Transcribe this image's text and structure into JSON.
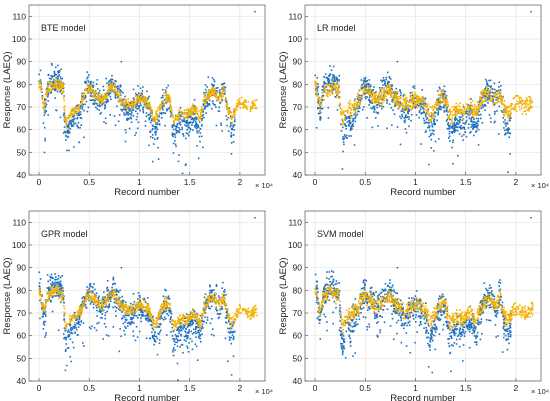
{
  "chart_data": [
    {
      "type": "scatter",
      "annotation": "BTE model",
      "xlabel": "Record number",
      "ylabel": "Response (LAEQ)",
      "x_exponent_label": "× 10⁴",
      "xlim": [
        -0.1,
        2.25
      ],
      "ylim": [
        40,
        115
      ],
      "xticks": [
        0,
        0.5,
        1,
        1.5,
        2
      ],
      "xtick_labels": [
        "0",
        "0.5",
        "1",
        "1.5",
        "2"
      ],
      "yticks": [
        40,
        50,
        60,
        70,
        80,
        90,
        100,
        110
      ],
      "ytick_labels": [
        "40",
        "50",
        "60",
        "70",
        "80",
        "90",
        "100",
        "110"
      ],
      "grid": true,
      "colors": {
        "true": "#1f6fc0",
        "predicted": "#f5b100"
      },
      "spread_scale": 0.55,
      "series": [
        {
          "points": [
            [
              0.0,
              82
            ],
            [
              0.02,
              80
            ],
            [
              0.05,
              66
            ],
            [
              0.08,
              78
            ],
            [
              0.12,
              81
            ],
            [
              0.16,
              82
            ],
            [
              0.2,
              81
            ],
            [
              0.24,
              80
            ],
            [
              0.26,
              60
            ],
            [
              0.28,
              57
            ],
            [
              0.3,
              62
            ],
            [
              0.34,
              64
            ],
            [
              0.38,
              66
            ],
            [
              0.42,
              70
            ],
            [
              0.45,
              74
            ],
            [
              0.48,
              80
            ],
            [
              0.52,
              78
            ],
            [
              0.55,
              76
            ],
            [
              0.58,
              74
            ],
            [
              0.62,
              72
            ],
            [
              0.66,
              74
            ],
            [
              0.7,
              79
            ],
            [
              0.74,
              80
            ],
            [
              0.78,
              76
            ],
            [
              0.82,
              72
            ],
            [
              0.86,
              70
            ],
            [
              0.9,
              68
            ],
            [
              0.95,
              71
            ],
            [
              1.0,
              73
            ],
            [
              1.05,
              72
            ],
            [
              1.1,
              68
            ],
            [
              1.15,
              59
            ],
            [
              1.18,
              63
            ],
            [
              1.22,
              70
            ],
            [
              1.26,
              74
            ],
            [
              1.3,
              73
            ],
            [
              1.34,
              58
            ],
            [
              1.38,
              61
            ],
            [
              1.42,
              64
            ],
            [
              1.46,
              62
            ],
            [
              1.5,
              64
            ],
            [
              1.55,
              67
            ],
            [
              1.6,
              60
            ],
            [
              1.64,
              70
            ],
            [
              1.68,
              75
            ],
            [
              1.72,
              78
            ],
            [
              1.76,
              76
            ],
            [
              1.8,
              72
            ],
            [
              1.84,
              78
            ],
            [
              1.88,
              66
            ],
            [
              1.92,
              60
            ],
            [
              1.96,
              66
            ],
            [
              2.0,
              70
            ],
            [
              2.05,
              69
            ],
            [
              2.1,
              67
            ],
            [
              2.15,
              69
            ]
          ]
        }
      ],
      "outliers": [
        [
          2.15,
          112
        ],
        [
          0.82,
          90
        ]
      ]
    },
    {
      "type": "scatter",
      "annotation": "LR model",
      "xlabel": "Record number",
      "ylabel": "Response (LAEQ)",
      "x_exponent_label": "× 10⁴",
      "xlim": [
        -0.1,
        2.25
      ],
      "ylim": [
        40,
        115
      ],
      "xticks": [
        0,
        0.5,
        1,
        1.5,
        2
      ],
      "xtick_labels": [
        "0",
        "0.5",
        "1",
        "1.5",
        "2"
      ],
      "yticks": [
        40,
        50,
        60,
        70,
        80,
        90,
        100,
        110
      ],
      "ytick_labels": [
        "40",
        "50",
        "60",
        "70",
        "80",
        "90",
        "100",
        "110"
      ],
      "grid": true,
      "colors": {
        "true": "#1f6fc0",
        "predicted": "#f5b100"
      },
      "spread_scale": 0.85,
      "series": [
        {
          "points": [
            [
              0.0,
              82
            ],
            [
              0.02,
              80
            ],
            [
              0.05,
              66
            ],
            [
              0.08,
              78
            ],
            [
              0.12,
              81
            ],
            [
              0.16,
              82
            ],
            [
              0.2,
              81
            ],
            [
              0.24,
              80
            ],
            [
              0.26,
              60
            ],
            [
              0.28,
              57
            ],
            [
              0.3,
              62
            ],
            [
              0.34,
              64
            ],
            [
              0.38,
              66
            ],
            [
              0.42,
              70
            ],
            [
              0.45,
              74
            ],
            [
              0.48,
              80
            ],
            [
              0.52,
              78
            ],
            [
              0.55,
              76
            ],
            [
              0.58,
              74
            ],
            [
              0.62,
              72
            ],
            [
              0.66,
              74
            ],
            [
              0.7,
              79
            ],
            [
              0.74,
              80
            ],
            [
              0.78,
              76
            ],
            [
              0.82,
              72
            ],
            [
              0.86,
              70
            ],
            [
              0.9,
              68
            ],
            [
              0.95,
              71
            ],
            [
              1.0,
              73
            ],
            [
              1.05,
              72
            ],
            [
              1.1,
              68
            ],
            [
              1.15,
              59
            ],
            [
              1.18,
              63
            ],
            [
              1.22,
              70
            ],
            [
              1.26,
              74
            ],
            [
              1.3,
              73
            ],
            [
              1.34,
              58
            ],
            [
              1.38,
              61
            ],
            [
              1.42,
              64
            ],
            [
              1.46,
              62
            ],
            [
              1.5,
              64
            ],
            [
              1.55,
              67
            ],
            [
              1.6,
              60
            ],
            [
              1.64,
              70
            ],
            [
              1.68,
              75
            ],
            [
              1.72,
              78
            ],
            [
              1.76,
              76
            ],
            [
              1.8,
              72
            ],
            [
              1.84,
              78
            ],
            [
              1.88,
              66
            ],
            [
              1.92,
              60
            ],
            [
              1.96,
              66
            ],
            [
              2.0,
              70
            ],
            [
              2.05,
              69
            ],
            [
              2.1,
              67
            ],
            [
              2.15,
              69
            ]
          ]
        }
      ],
      "outliers": [
        [
          2.15,
          112
        ],
        [
          0.82,
          90
        ]
      ]
    },
    {
      "type": "scatter",
      "annotation": "GPR model",
      "xlabel": "Record number",
      "ylabel": "Response (LAEQ)",
      "x_exponent_label": "× 10⁴",
      "xlim": [
        -0.1,
        2.25
      ],
      "ylim": [
        40,
        115
      ],
      "xticks": [
        0,
        0.5,
        1,
        1.5,
        2
      ],
      "xtick_labels": [
        "0",
        "0.5",
        "1",
        "1.5",
        "2"
      ],
      "yticks": [
        40,
        50,
        60,
        70,
        80,
        90,
        100,
        110
      ],
      "ytick_labels": [
        "40",
        "50",
        "60",
        "70",
        "80",
        "90",
        "100",
        "110"
      ],
      "grid": true,
      "colors": {
        "true": "#1f6fc0",
        "predicted": "#f5b100"
      },
      "spread_scale": 0.6,
      "series": [
        {
          "points": [
            [
              0.0,
              82
            ],
            [
              0.02,
              80
            ],
            [
              0.05,
              66
            ],
            [
              0.08,
              78
            ],
            [
              0.12,
              81
            ],
            [
              0.16,
              82
            ],
            [
              0.2,
              81
            ],
            [
              0.24,
              80
            ],
            [
              0.26,
              60
            ],
            [
              0.28,
              57
            ],
            [
              0.3,
              62
            ],
            [
              0.34,
              64
            ],
            [
              0.38,
              66
            ],
            [
              0.42,
              70
            ],
            [
              0.45,
              74
            ],
            [
              0.48,
              80
            ],
            [
              0.52,
              78
            ],
            [
              0.55,
              76
            ],
            [
              0.58,
              74
            ],
            [
              0.62,
              72
            ],
            [
              0.66,
              74
            ],
            [
              0.7,
              79
            ],
            [
              0.74,
              80
            ],
            [
              0.78,
              76
            ],
            [
              0.82,
              72
            ],
            [
              0.86,
              70
            ],
            [
              0.9,
              68
            ],
            [
              0.95,
              71
            ],
            [
              1.0,
              73
            ],
            [
              1.05,
              72
            ],
            [
              1.1,
              68
            ],
            [
              1.15,
              59
            ],
            [
              1.18,
              63
            ],
            [
              1.22,
              70
            ],
            [
              1.26,
              74
            ],
            [
              1.3,
              73
            ],
            [
              1.34,
              58
            ],
            [
              1.38,
              61
            ],
            [
              1.42,
              64
            ],
            [
              1.46,
              62
            ],
            [
              1.5,
              64
            ],
            [
              1.55,
              67
            ],
            [
              1.6,
              60
            ],
            [
              1.64,
              70
            ],
            [
              1.68,
              75
            ],
            [
              1.72,
              78
            ],
            [
              1.76,
              76
            ],
            [
              1.8,
              72
            ],
            [
              1.84,
              78
            ],
            [
              1.88,
              66
            ],
            [
              1.92,
              60
            ],
            [
              1.96,
              66
            ],
            [
              2.0,
              70
            ],
            [
              2.05,
              69
            ],
            [
              2.1,
              67
            ],
            [
              2.15,
              69
            ]
          ]
        }
      ],
      "outliers": [
        [
          2.15,
          112
        ],
        [
          0.82,
          90
        ]
      ]
    },
    {
      "type": "scatter",
      "annotation": "SVM model",
      "xlabel": "Record number",
      "ylabel": "Response (LAEQ)",
      "x_exponent_label": "× 10⁴",
      "xlim": [
        -0.1,
        2.25
      ],
      "ylim": [
        40,
        115
      ],
      "xticks": [
        0,
        0.5,
        1,
        1.5,
        2
      ],
      "xtick_labels": [
        "0",
        "0.5",
        "1",
        "1.5",
        "2"
      ],
      "yticks": [
        40,
        50,
        60,
        70,
        80,
        90,
        100,
        110
      ],
      "ytick_labels": [
        "40",
        "50",
        "60",
        "70",
        "80",
        "90",
        "100",
        "110"
      ],
      "grid": true,
      "colors": {
        "true": "#1f6fc0",
        "predicted": "#f5b100"
      },
      "spread_scale": 0.8,
      "series": [
        {
          "points": [
            [
              0.0,
              82
            ],
            [
              0.02,
              80
            ],
            [
              0.05,
              66
            ],
            [
              0.08,
              78
            ],
            [
              0.12,
              81
            ],
            [
              0.16,
              82
            ],
            [
              0.2,
              81
            ],
            [
              0.24,
              80
            ],
            [
              0.26,
              60
            ],
            [
              0.28,
              57
            ],
            [
              0.3,
              62
            ],
            [
              0.34,
              64
            ],
            [
              0.38,
              66
            ],
            [
              0.42,
              70
            ],
            [
              0.45,
              74
            ],
            [
              0.48,
              80
            ],
            [
              0.52,
              78
            ],
            [
              0.55,
              76
            ],
            [
              0.58,
              74
            ],
            [
              0.62,
              72
            ],
            [
              0.66,
              74
            ],
            [
              0.7,
              79
            ],
            [
              0.74,
              80
            ],
            [
              0.78,
              76
            ],
            [
              0.82,
              72
            ],
            [
              0.86,
              70
            ],
            [
              0.9,
              68
            ],
            [
              0.95,
              71
            ],
            [
              1.0,
              73
            ],
            [
              1.05,
              72
            ],
            [
              1.1,
              68
            ],
            [
              1.15,
              59
            ],
            [
              1.18,
              63
            ],
            [
              1.22,
              70
            ],
            [
              1.26,
              74
            ],
            [
              1.3,
              73
            ],
            [
              1.34,
              58
            ],
            [
              1.38,
              61
            ],
            [
              1.42,
              64
            ],
            [
              1.46,
              62
            ],
            [
              1.5,
              64
            ],
            [
              1.55,
              67
            ],
            [
              1.6,
              60
            ],
            [
              1.64,
              70
            ],
            [
              1.68,
              75
            ],
            [
              1.72,
              78
            ],
            [
              1.76,
              76
            ],
            [
              1.8,
              72
            ],
            [
              1.84,
              78
            ],
            [
              1.88,
              66
            ],
            [
              1.92,
              60
            ],
            [
              1.96,
              66
            ],
            [
              2.0,
              70
            ],
            [
              2.05,
              69
            ],
            [
              2.1,
              67
            ],
            [
              2.15,
              69
            ]
          ]
        }
      ],
      "outliers": [
        [
          2.15,
          112
        ],
        [
          0.82,
          90
        ]
      ]
    }
  ]
}
